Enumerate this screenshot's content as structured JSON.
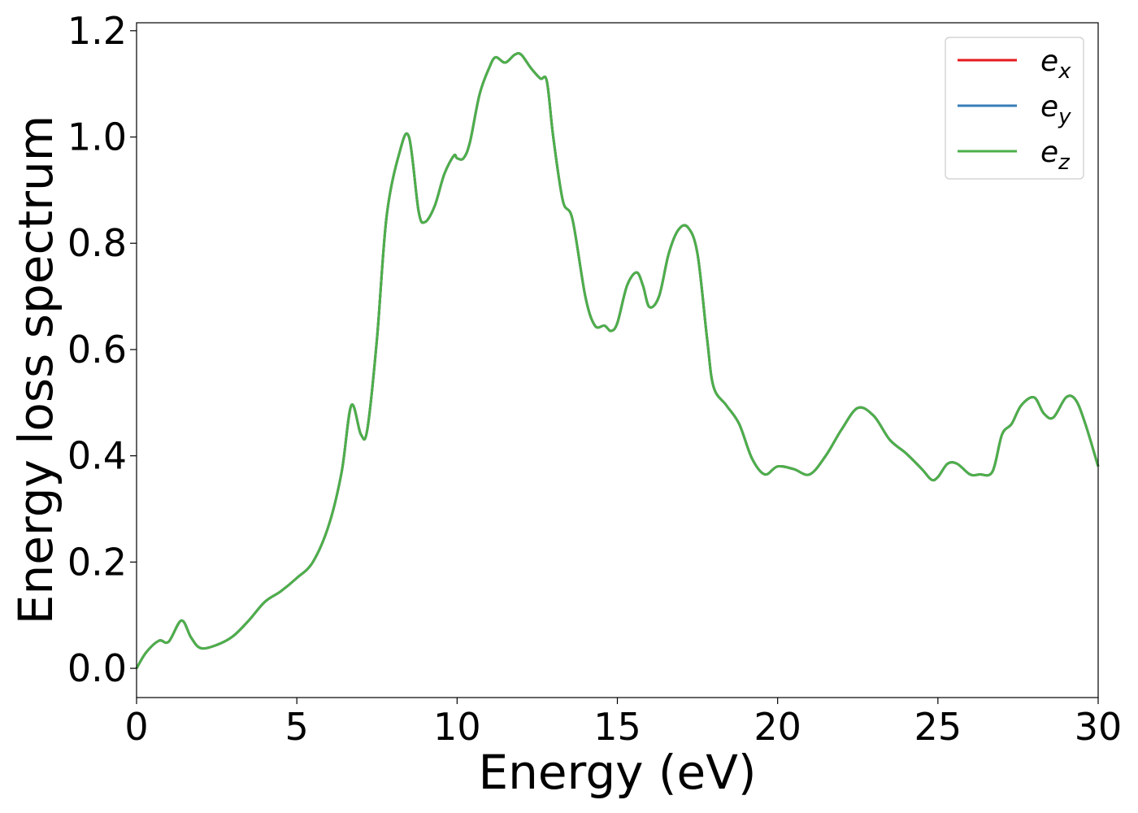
{
  "chart_data": {
    "type": "line",
    "title": "",
    "xlabel": "Energy (eV)",
    "ylabel": "Energy loss spectrum",
    "xlim": [
      0,
      30
    ],
    "ylim": [
      -0.055,
      1.215
    ],
    "xticks": [
      0,
      5,
      10,
      15,
      20,
      25,
      30
    ],
    "xtick_labels": [
      "0",
      "5",
      "10",
      "15",
      "20",
      "25",
      "30"
    ],
    "yticks": [
      0.0,
      0.2,
      0.4,
      0.6,
      0.8,
      1.0,
      1.2
    ],
    "ytick_labels": [
      "0.0",
      "0.2",
      "0.4",
      "0.6",
      "0.8",
      "1.0",
      "1.2"
    ],
    "grid": false,
    "legend_position": "top-right",
    "x": [
      0,
      0.3,
      0.7,
      1.0,
      1.4,
      1.7,
      2.0,
      2.5,
      3.0,
      3.5,
      4.0,
      4.5,
      5.0,
      5.5,
      6.0,
      6.4,
      6.7,
      7.0,
      7.2,
      7.5,
      7.8,
      8.2,
      8.5,
      8.8,
      9.0,
      9.3,
      9.6,
      9.9,
      10.0,
      10.2,
      10.4,
      10.7,
      11.0,
      11.2,
      11.5,
      11.8,
      12.0,
      12.3,
      12.6,
      12.8,
      13.0,
      13.3,
      13.6,
      14.0,
      14.3,
      14.6,
      14.8,
      15.0,
      15.3,
      15.6,
      15.8,
      16.0,
      16.3,
      16.6,
      16.9,
      17.2,
      17.5,
      17.8,
      18.0,
      18.4,
      18.8,
      19.2,
      19.6,
      20.0,
      20.5,
      21.0,
      21.5,
      22.0,
      22.5,
      23.0,
      23.5,
      24.0,
      24.5,
      24.8,
      25.0,
      25.3,
      25.6,
      26.0,
      26.3,
      26.7,
      27.0,
      27.3,
      27.6,
      28.0,
      28.3,
      28.6,
      29.0,
      29.3,
      29.6,
      30.0
    ],
    "series": [
      {
        "name": "e_x",
        "label_base": "e",
        "label_sub": "x",
        "color": "#e41a1c",
        "y": [
          0.0,
          0.03,
          0.052,
          0.05,
          0.09,
          0.058,
          0.038,
          0.044,
          0.06,
          0.09,
          0.125,
          0.145,
          0.17,
          0.2,
          0.27,
          0.37,
          0.495,
          0.44,
          0.45,
          0.62,
          0.85,
          0.97,
          1.0,
          0.86,
          0.84,
          0.87,
          0.93,
          0.965,
          0.96,
          0.96,
          0.99,
          1.08,
          1.13,
          1.15,
          1.14,
          1.155,
          1.155,
          1.13,
          1.11,
          1.105,
          1.0,
          0.88,
          0.845,
          0.7,
          0.645,
          0.645,
          0.635,
          0.65,
          0.72,
          0.745,
          0.72,
          0.68,
          0.7,
          0.78,
          0.825,
          0.83,
          0.78,
          0.62,
          0.53,
          0.495,
          0.46,
          0.395,
          0.365,
          0.38,
          0.375,
          0.365,
          0.4,
          0.45,
          0.49,
          0.475,
          0.43,
          0.405,
          0.375,
          0.355,
          0.36,
          0.385,
          0.385,
          0.365,
          0.365,
          0.37,
          0.44,
          0.46,
          0.495,
          0.51,
          0.48,
          0.472,
          0.51,
          0.505,
          0.46,
          0.38
        ]
      },
      {
        "name": "e_y",
        "label_base": "e",
        "label_sub": "y",
        "color": "#377eb8",
        "y": [
          0.0,
          0.03,
          0.052,
          0.05,
          0.09,
          0.058,
          0.038,
          0.044,
          0.06,
          0.09,
          0.125,
          0.145,
          0.17,
          0.2,
          0.27,
          0.37,
          0.495,
          0.44,
          0.45,
          0.62,
          0.85,
          0.97,
          1.0,
          0.86,
          0.84,
          0.87,
          0.93,
          0.965,
          0.96,
          0.96,
          0.99,
          1.08,
          1.13,
          1.15,
          1.14,
          1.155,
          1.155,
          1.13,
          1.11,
          1.105,
          1.0,
          0.88,
          0.845,
          0.7,
          0.645,
          0.645,
          0.635,
          0.65,
          0.72,
          0.745,
          0.72,
          0.68,
          0.7,
          0.78,
          0.825,
          0.83,
          0.78,
          0.62,
          0.53,
          0.495,
          0.46,
          0.395,
          0.365,
          0.38,
          0.375,
          0.365,
          0.4,
          0.45,
          0.49,
          0.475,
          0.43,
          0.405,
          0.375,
          0.355,
          0.36,
          0.385,
          0.385,
          0.365,
          0.365,
          0.37,
          0.44,
          0.46,
          0.495,
          0.51,
          0.48,
          0.472,
          0.51,
          0.505,
          0.46,
          0.38
        ]
      },
      {
        "name": "e_z",
        "label_base": "e",
        "label_sub": "z",
        "color": "#4daf4a",
        "y": [
          0.0,
          0.03,
          0.052,
          0.05,
          0.09,
          0.058,
          0.038,
          0.044,
          0.06,
          0.09,
          0.125,
          0.145,
          0.17,
          0.2,
          0.27,
          0.37,
          0.495,
          0.44,
          0.45,
          0.62,
          0.85,
          0.97,
          1.0,
          0.86,
          0.84,
          0.87,
          0.93,
          0.965,
          0.96,
          0.96,
          0.99,
          1.08,
          1.13,
          1.15,
          1.14,
          1.155,
          1.155,
          1.13,
          1.11,
          1.105,
          1.0,
          0.88,
          0.845,
          0.7,
          0.645,
          0.645,
          0.635,
          0.65,
          0.72,
          0.745,
          0.72,
          0.68,
          0.7,
          0.78,
          0.825,
          0.83,
          0.78,
          0.62,
          0.53,
          0.495,
          0.46,
          0.395,
          0.365,
          0.38,
          0.375,
          0.365,
          0.4,
          0.45,
          0.49,
          0.475,
          0.43,
          0.405,
          0.375,
          0.355,
          0.36,
          0.385,
          0.385,
          0.365,
          0.365,
          0.37,
          0.44,
          0.46,
          0.495,
          0.51,
          0.48,
          0.472,
          0.51,
          0.505,
          0.46,
          0.38
        ]
      }
    ]
  }
}
